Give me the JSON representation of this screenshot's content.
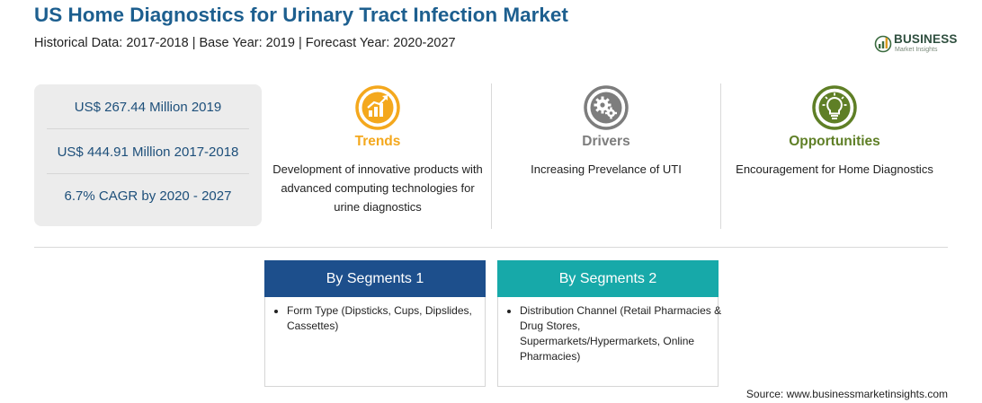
{
  "title": "US Home Diagnostics for Urinary Tract Infection Market",
  "subtitle": "Historical Data: 2017-2018 | Base Year: 2019 | Forecast Year: 2020-2027",
  "logo": {
    "main": "BUSINESS",
    "sub": "Market Insights",
    "icon": "bar-chart-globe-icon"
  },
  "stats": [
    "US$ 267.44 Million 2019",
    "US$ 444.91 Million 2017-2018",
    "6.7% CAGR by 2020 - 2027"
  ],
  "columns": [
    {
      "label": "Trends",
      "color": "#f4a81d",
      "icon": "rising-chart-icon",
      "desc": "Development of innovative products with advanced computing technologies for urine diagnostics"
    },
    {
      "label": "Drivers",
      "color": "#7d7d7d",
      "icon": "gears-icon",
      "desc": "Increasing Prevelance of UTI"
    },
    {
      "label": "Opportunities",
      "color": "#5f7f26",
      "icon": "lightbulb-icon",
      "desc": "Encouragement for Home Diagnostics"
    }
  ],
  "segments": [
    {
      "title": "By Segments 1",
      "color": "#1d4f8c",
      "items": [
        "Form Type (Dipsticks, Cups, Dipslides, Cassettes)"
      ]
    },
    {
      "title": "By Segments 2",
      "color": "#17a9a9",
      "items": [
        "Distribution Channel (Retail Pharmacies & Drug Stores, Supermarkets/Hypermarkets, Online Pharmacies)"
      ]
    }
  ],
  "source": "Source: www.businessmarketinsights.com"
}
